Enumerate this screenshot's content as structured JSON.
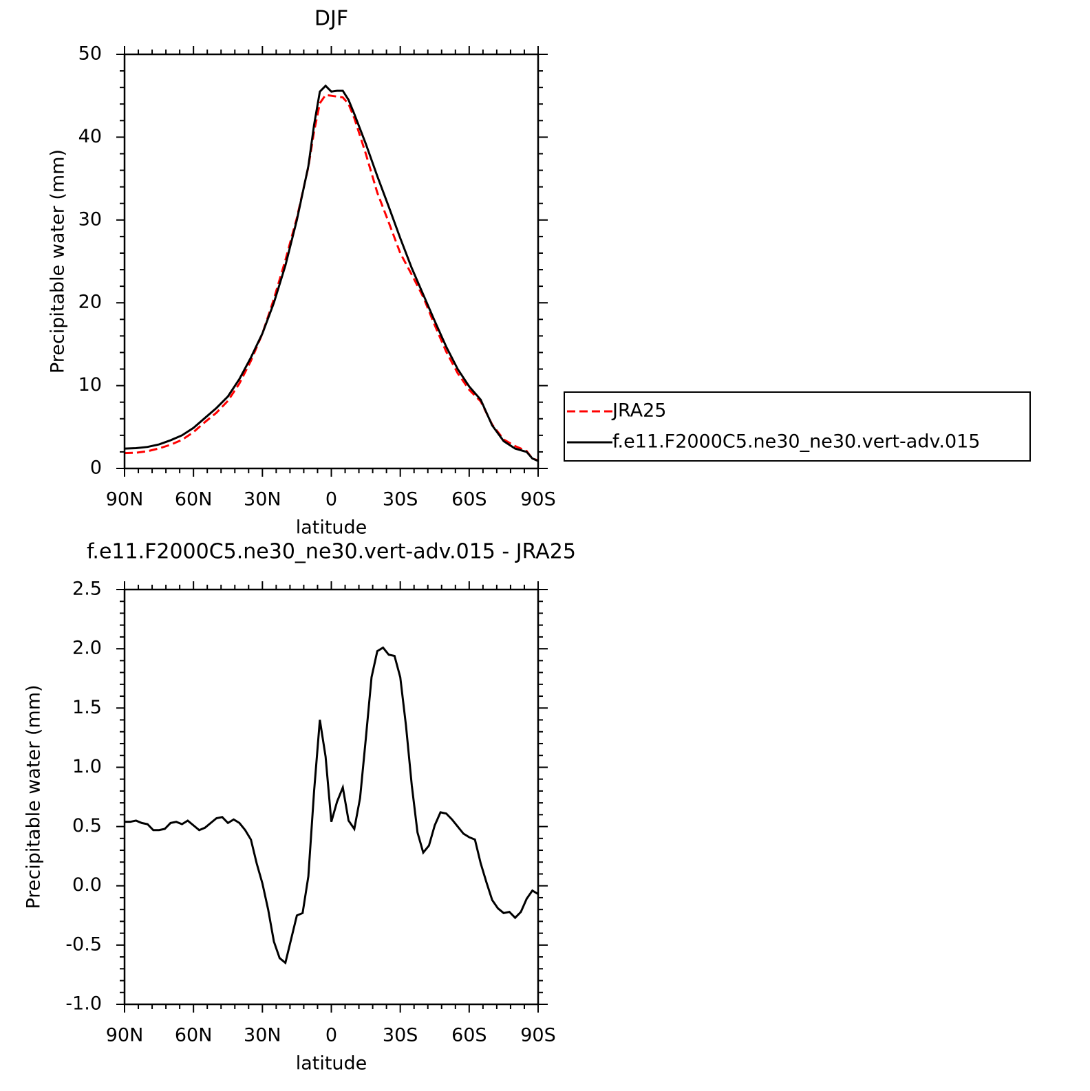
{
  "chart_data": [
    {
      "type": "line",
      "title": "DJF",
      "xlabel": "latitude",
      "ylabel": "Precipitable water (mm)",
      "x": [
        90,
        85,
        80,
        75,
        70,
        65,
        60,
        55,
        50,
        45,
        40,
        35,
        30,
        25,
        20,
        15,
        10,
        7.5,
        5,
        2.5,
        0,
        -2.5,
        -5,
        -7.5,
        -10,
        -15,
        -20,
        -25,
        -30,
        -35,
        -40,
        -45,
        -50,
        -55,
        -60,
        -65,
        -70,
        -75,
        -80,
        -85,
        -87.5,
        -90
      ],
      "series": [
        {
          "name": "JRA25",
          "color": "#ff0000",
          "line_style": "dashed",
          "values": [
            1.86,
            1.9,
            2.08,
            2.42,
            2.86,
            3.45,
            4.39,
            5.6,
            6.73,
            8.17,
            10.27,
            13.0,
            16.28,
            20.47,
            25.15,
            30.25,
            36.4,
            40.7,
            44.1,
            45.1,
            45.0,
            44.9,
            44.8,
            44.0,
            42.3,
            38.0,
            33.3,
            29.7,
            26.0,
            23.4,
            20.7,
            17.3,
            14.1,
            11.5,
            9.5,
            8.1,
            5.3,
            3.5,
            2.7,
            2.1,
            1.2,
            0.97
          ]
        },
        {
          "name": "f.e11.F2000C5.ne30_ne30.vert-adv.015",
          "color": "#000000",
          "line_style": "solid",
          "values": [
            2.4,
            2.45,
            2.6,
            2.9,
            3.4,
            4.0,
            4.9,
            6.1,
            7.3,
            8.7,
            10.8,
            13.4,
            16.3,
            20.0,
            24.5,
            30.0,
            36.5,
            41.5,
            45.5,
            46.2,
            45.5,
            45.6,
            45.6,
            44.5,
            42.8,
            39.2,
            35.3,
            31.6,
            27.8,
            24.2,
            21.0,
            17.8,
            14.7,
            12.0,
            9.9,
            8.3,
            5.2,
            3.3,
            2.4,
            2.0,
            1.2,
            0.9
          ]
        }
      ],
      "xlim": [
        90,
        -90
      ],
      "xticks": [
        {
          "value": 90,
          "label": "90N"
        },
        {
          "value": 60,
          "label": "60N"
        },
        {
          "value": 30,
          "label": "30N"
        },
        0,
        {
          "value": -30,
          "label": "30S"
        },
        {
          "value": -60,
          "label": "60S"
        },
        {
          "value": -90,
          "label": "90S"
        }
      ],
      "ylim": [
        0,
        50
      ],
      "yticks": [
        0,
        10,
        20,
        30,
        40,
        50
      ],
      "legend": "right"
    },
    {
      "type": "line",
      "title": "f.e11.F2000C5.ne30_ne30.vert-adv.015 - JRA25",
      "xlabel": "latitude",
      "ylabel": "Precipitable water (mm)",
      "x": [
        90,
        87.5,
        85,
        82.5,
        80,
        77.5,
        75,
        72.5,
        70,
        67.5,
        65,
        62.5,
        60,
        57.5,
        55,
        52.5,
        50,
        47.5,
        45,
        42.5,
        40,
        37.5,
        35,
        32.5,
        30,
        27.5,
        25,
        22.5,
        20,
        17.5,
        15,
        12.5,
        10,
        7.5,
        5,
        2.5,
        0,
        -2.5,
        -5,
        -7.5,
        -10,
        -12.5,
        -15,
        -17.5,
        -20,
        -22.5,
        -25,
        -27.5,
        -30,
        -32.5,
        -35,
        -37.5,
        -40,
        -42.5,
        -45,
        -47.5,
        -50,
        -52.5,
        -55,
        -57.5,
        -60,
        -62.5,
        -65,
        -67.5,
        -70,
        -72.5,
        -75,
        -77.5,
        -80,
        -82.5,
        -85,
        -87.5,
        -90
      ],
      "series": [
        {
          "name": "f.e11.F2000C5.ne30_ne30.vert-adv.015 - JRA25",
          "color": "#000000",
          "line_style": "solid",
          "values": [
            0.54,
            0.54,
            0.55,
            0.53,
            0.52,
            0.47,
            0.47,
            0.48,
            0.53,
            0.54,
            0.52,
            0.55,
            0.51,
            0.47,
            0.49,
            0.53,
            0.57,
            0.58,
            0.53,
            0.56,
            0.53,
            0.47,
            0.39,
            0.19,
            0.02,
            -0.2,
            -0.47,
            -0.61,
            -0.65,
            -0.45,
            -0.25,
            -0.23,
            0.08,
            0.8,
            1.4,
            1.09,
            0.54,
            0.71,
            0.83,
            0.55,
            0.48,
            0.74,
            1.24,
            1.76,
            1.98,
            2.01,
            1.95,
            1.94,
            1.76,
            1.35,
            0.85,
            0.45,
            0.28,
            0.34,
            0.51,
            0.62,
            0.61,
            0.56,
            0.5,
            0.44,
            0.41,
            0.39,
            0.19,
            0.03,
            -0.12,
            -0.19,
            -0.23,
            -0.22,
            -0.27,
            -0.22,
            -0.11,
            -0.04,
            -0.07
          ]
        }
      ],
      "xlim": [
        90,
        -90
      ],
      "xticks": [
        {
          "value": 90,
          "label": "90N"
        },
        {
          "value": 60,
          "label": "60N"
        },
        {
          "value": 30,
          "label": "30N"
        },
        0,
        {
          "value": -30,
          "label": "30S"
        },
        {
          "value": -60,
          "label": "60S"
        },
        {
          "value": -90,
          "label": "90S"
        }
      ],
      "ylim": [
        -1,
        2.5
      ],
      "yticks": [
        {
          "value": -1,
          "label": "-1.0"
        },
        -0.5,
        {
          "value": 0,
          "label": "0.0"
        },
        0.5,
        {
          "value": 1,
          "label": "1.0"
        },
        1.5,
        {
          "value": 2,
          "label": "2.0"
        },
        2.5
      ]
    }
  ]
}
